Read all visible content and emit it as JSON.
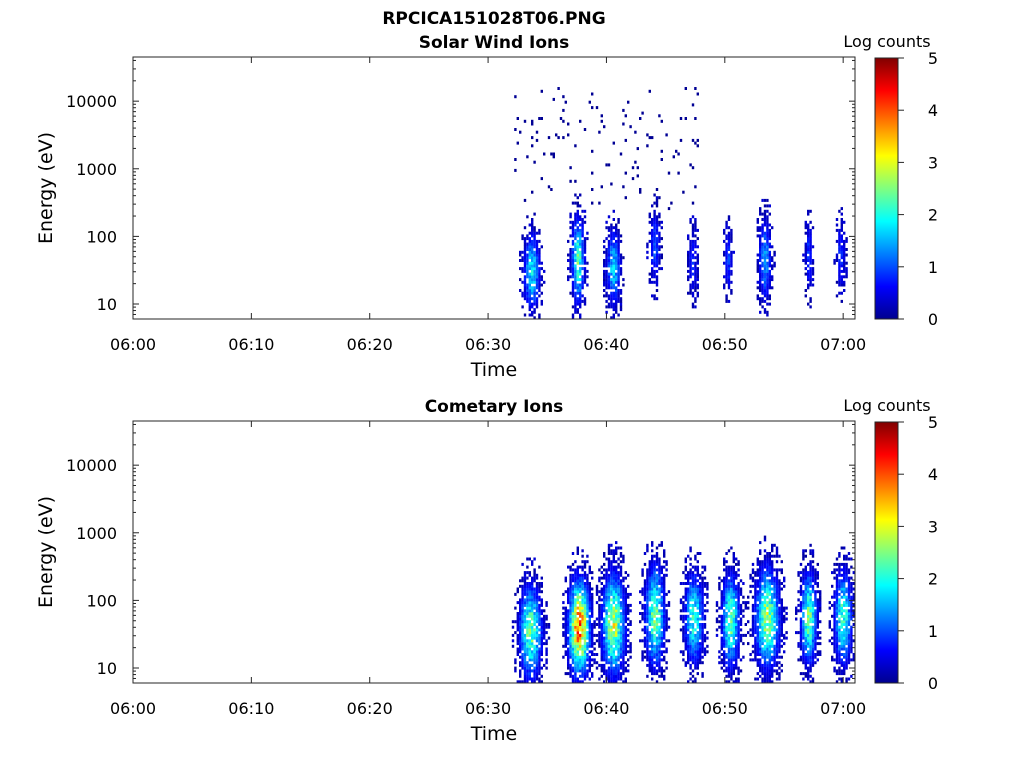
{
  "figure": {
    "title": "RPCICA151028T06.PNG"
  },
  "chart_data": [
    {
      "type": "heatmap",
      "title": "Solar Wind Ions",
      "xlabel": "Time",
      "ylabel": "Energy (eV)",
      "x_ticks": [
        "06:00",
        "06:10",
        "06:20",
        "06:30",
        "06:40",
        "06:50",
        "07:00"
      ],
      "xlim": [
        "06:00",
        "07:01"
      ],
      "y_scale": "log",
      "ylim": [
        6,
        45000
      ],
      "y_ticks": [
        10,
        100,
        1000,
        10000
      ],
      "y_tick_labels": [
        "10",
        "100",
        "1000",
        "10000"
      ],
      "colorbar": {
        "label": "Log counts",
        "min": 0,
        "max": 5,
        "ticks": [
          "0",
          "1",
          "2",
          "3",
          "4",
          "5"
        ],
        "colormap": "jet"
      },
      "data_start": "06:32",
      "bursts": [
        {
          "time": "06:33.6",
          "center_energy_eV": 30,
          "width_min": 1.0,
          "spread_dec": 0.5,
          "peak_log_counts": 1.8
        },
        {
          "time": "06:37.5",
          "center_energy_eV": 45,
          "width_min": 0.8,
          "spread_dec": 0.55,
          "peak_log_counts": 2.2
        },
        {
          "time": "06:40.5",
          "center_energy_eV": 35,
          "width_min": 0.9,
          "spread_dec": 0.5,
          "peak_log_counts": 1.6
        },
        {
          "time": "06:44.0",
          "center_energy_eV": 70,
          "width_min": 0.7,
          "spread_dec": 0.5,
          "peak_log_counts": 1.0
        },
        {
          "time": "06:47.2",
          "center_energy_eV": 40,
          "width_min": 0.6,
          "spread_dec": 0.5,
          "peak_log_counts": 0.8
        },
        {
          "time": "06:50.2",
          "center_energy_eV": 45,
          "width_min": 0.5,
          "spread_dec": 0.45,
          "peak_log_counts": 0.9
        },
        {
          "time": "06:53.3",
          "center_energy_eV": 45,
          "width_min": 0.8,
          "spread_dec": 0.55,
          "peak_log_counts": 1.4
        },
        {
          "time": "06:57.0",
          "center_energy_eV": 50,
          "width_min": 0.5,
          "spread_dec": 0.5,
          "peak_log_counts": 0.9
        },
        {
          "time": "06:59.7",
          "center_energy_eV": 50,
          "width_min": 0.6,
          "spread_dec": 0.5,
          "peak_log_counts": 0.8
        }
      ],
      "background_counts": "sparse single-count points 300-15000 eV between 06:32 and 06:48"
    },
    {
      "type": "heatmap",
      "title": "Cometary Ions",
      "xlabel": "Time",
      "ylabel": "Energy (eV)",
      "x_ticks": [
        "06:00",
        "06:10",
        "06:20",
        "06:30",
        "06:40",
        "06:50",
        "07:00"
      ],
      "xlim": [
        "06:00",
        "07:01"
      ],
      "y_scale": "log",
      "ylim": [
        6,
        45000
      ],
      "y_ticks": [
        10,
        100,
        1000,
        10000
      ],
      "y_tick_labels": [
        "10",
        "100",
        "1000",
        "10000"
      ],
      "colorbar": {
        "label": "Log counts",
        "min": 0,
        "max": 5,
        "ticks": [
          "0",
          "1",
          "2",
          "3",
          "4",
          "5"
        ],
        "colormap": "jet"
      },
      "data_start": "06:32",
      "bursts": [
        {
          "time": "06:33.5",
          "center_energy_eV": 35,
          "width_min": 1.4,
          "spread_dec": 0.6,
          "peak_log_counts": 2.4
        },
        {
          "time": "06:37.6",
          "center_energy_eV": 40,
          "width_min": 1.3,
          "spread_dec": 0.6,
          "peak_log_counts": 3.8
        },
        {
          "time": "06:40.5",
          "center_energy_eV": 45,
          "width_min": 1.4,
          "spread_dec": 0.65,
          "peak_log_counts": 2.8
        },
        {
          "time": "06:44.0",
          "center_energy_eV": 60,
          "width_min": 1.2,
          "spread_dec": 0.65,
          "peak_log_counts": 2.4
        },
        {
          "time": "06:47.3",
          "center_energy_eV": 55,
          "width_min": 1.2,
          "spread_dec": 0.6,
          "peak_log_counts": 2.0
        },
        {
          "time": "06:50.4",
          "center_energy_eV": 50,
          "width_min": 1.1,
          "spread_dec": 0.6,
          "peak_log_counts": 2.3
        },
        {
          "time": "06:53.5",
          "center_energy_eV": 55,
          "width_min": 1.5,
          "spread_dec": 0.65,
          "peak_log_counts": 2.6
        },
        {
          "time": "06:57.0",
          "center_energy_eV": 55,
          "width_min": 1.0,
          "spread_dec": 0.6,
          "peak_log_counts": 2.3
        },
        {
          "time": "06:59.9",
          "center_energy_eV": 55,
          "width_min": 1.1,
          "spread_dec": 0.6,
          "peak_log_counts": 2.2
        }
      ]
    }
  ]
}
